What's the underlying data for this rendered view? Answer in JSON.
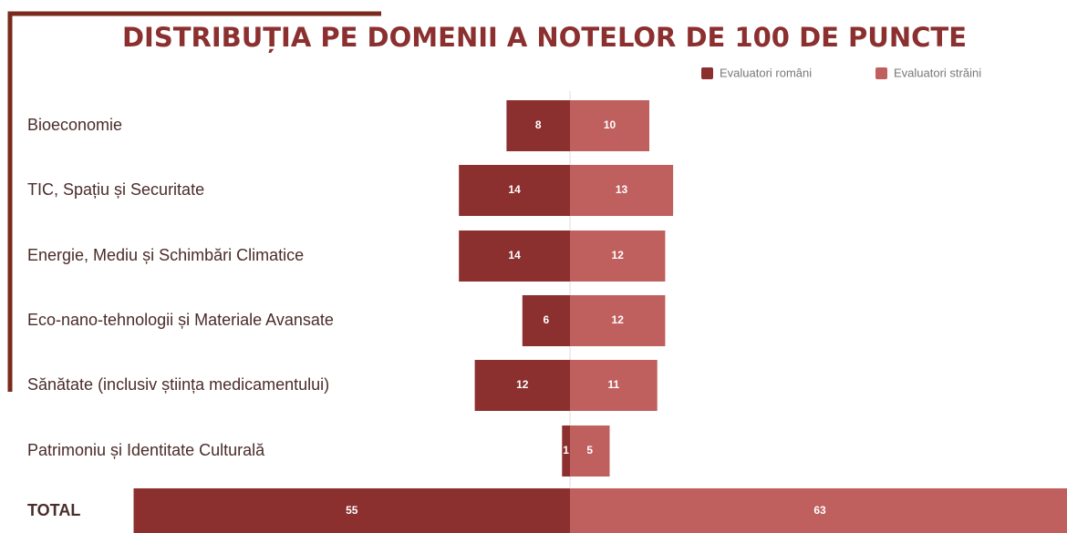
{
  "chart_data": {
    "type": "bar",
    "orientation": "diverging",
    "title": "DISTRIBUȚIA PE DOMENII A NOTELOR DE 100 DE PUNCTE",
    "categories": [
      "Bioeconomie",
      "TIC, Spațiu și Securitate",
      "Energie, Mediu și Schimbări Climatice",
      "Eco-nano-tehnologii și Materiale Avansate",
      "Sănătate (inclusiv știința medicamentului)",
      "Patrimoniu și Identitate Culturală",
      "TOTAL"
    ],
    "series": [
      {
        "name": "Evaluatori români",
        "color": "#8b2f2f",
        "values": [
          8,
          14,
          14,
          6,
          12,
          1,
          55
        ]
      },
      {
        "name": "Evaluatori străini",
        "color": "#bf5f5e",
        "values": [
          10,
          13,
          12,
          12,
          11,
          5,
          63
        ]
      }
    ],
    "legend": "top-right"
  }
}
